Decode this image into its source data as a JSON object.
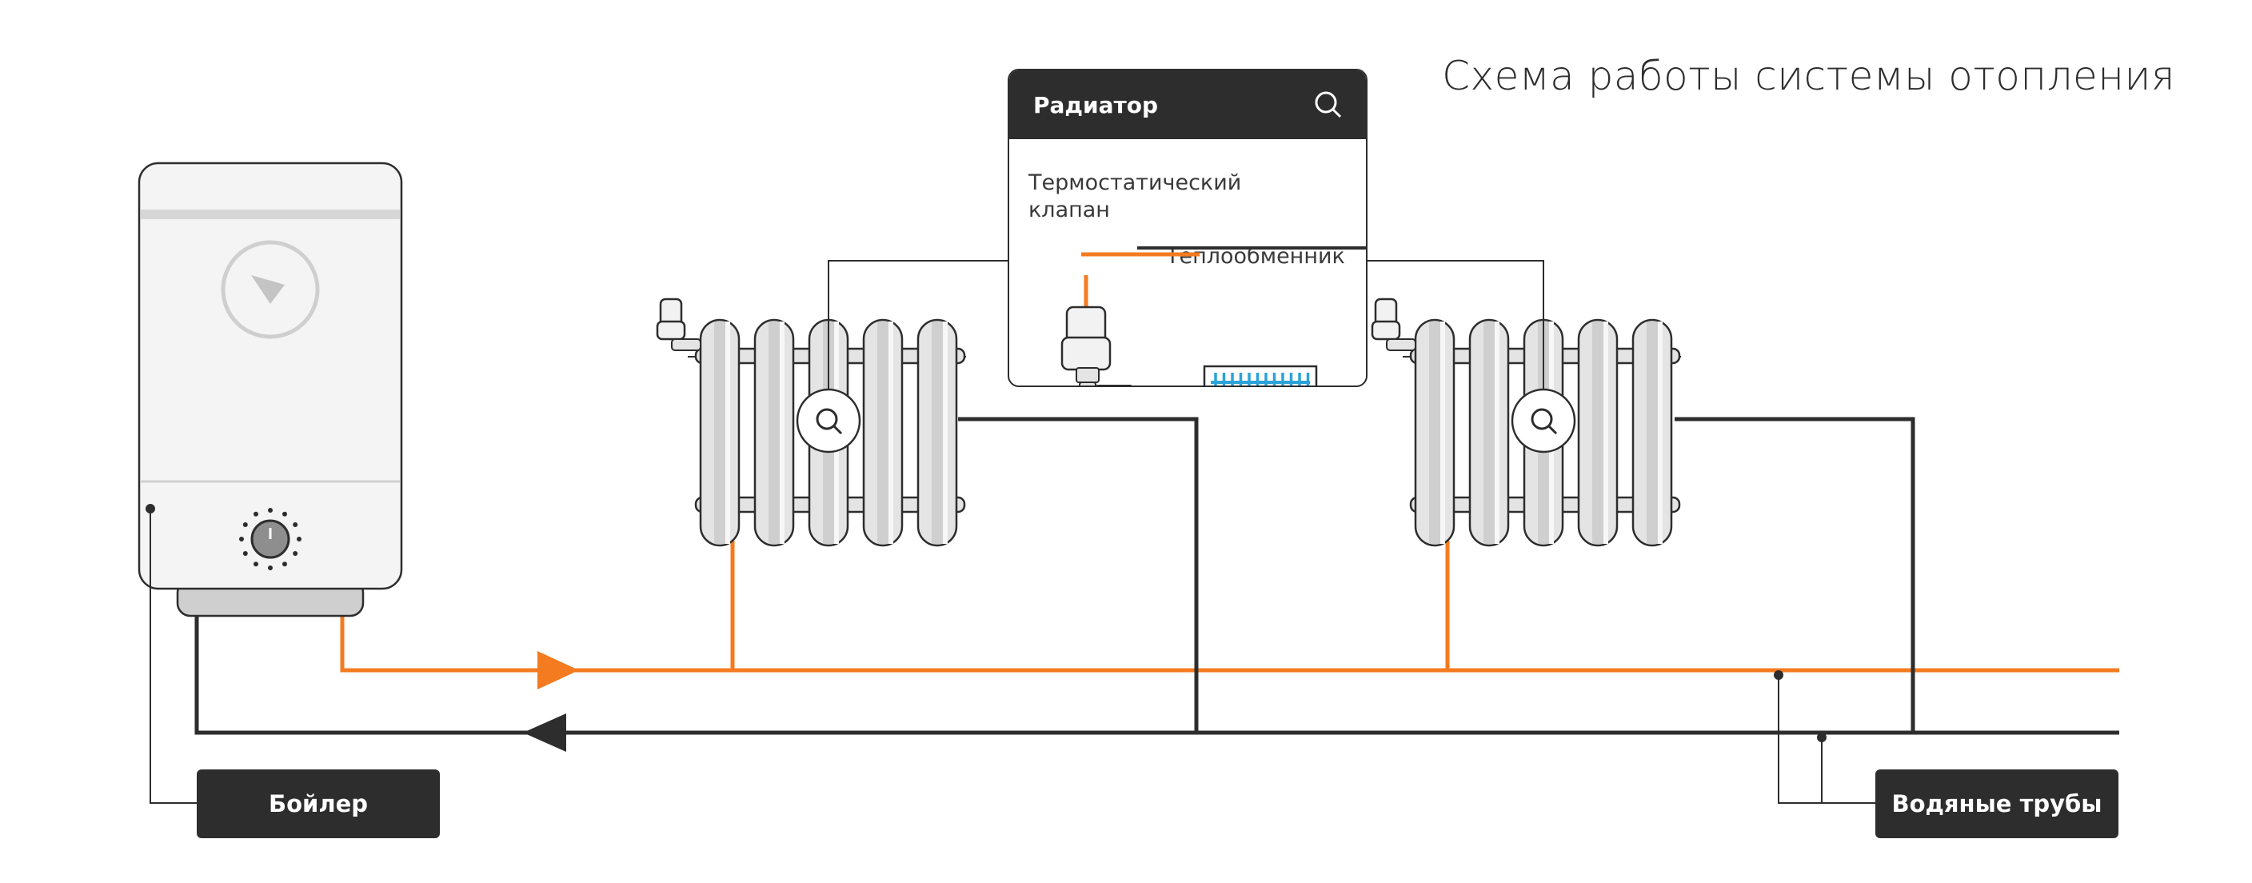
{
  "title": "Схема работы системы отопления",
  "labels": {
    "boiler": "Бойлер",
    "pipes": "Водяные трубы"
  },
  "popup": {
    "title": "Радиатор",
    "valve_label": "Термостатический клапан",
    "heat_exchanger_label": "Теплообменник"
  },
  "icons": {
    "popup_search": "search-icon",
    "radiator_zoom": "magnifier-icon",
    "boiler_gauge": "gauge-icon",
    "boiler_knob": "temperature-knob-icon",
    "flow_supply": "flow-arrow-right-icon",
    "flow_return": "flow-arrow-left-icon"
  },
  "colors": {
    "hot_pipe": "#f47b20",
    "cold_pipe": "#2d2d2d",
    "heat_exchanger_fins": "#2ba3d9",
    "dark": "#2d2d2d",
    "radiator_body": "#e2e2e2"
  }
}
